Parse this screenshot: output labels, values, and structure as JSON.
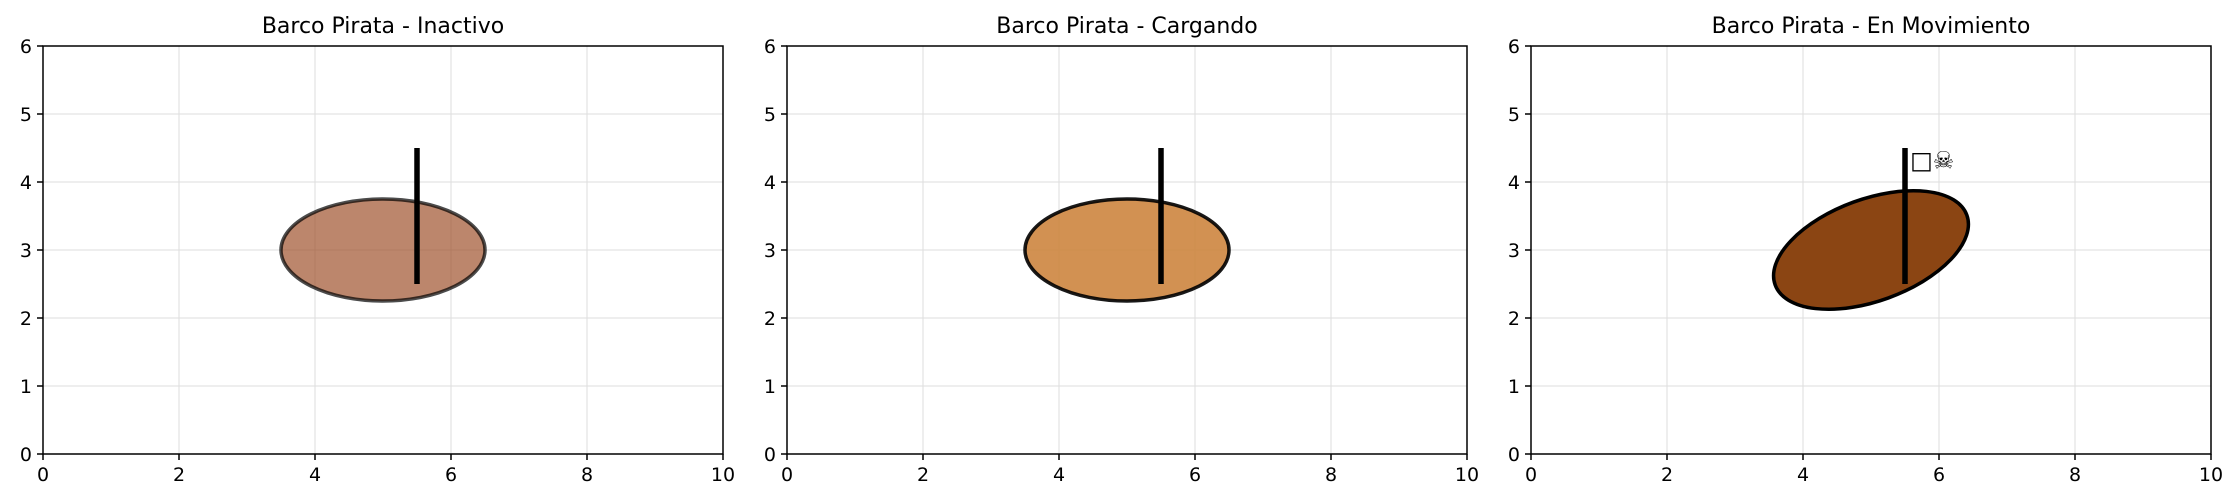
{
  "chart_data": [
    {
      "type": "other",
      "title": "Barco Pirata - Inactivo",
      "xlabel": "",
      "ylabel": "",
      "xlim": [
        0,
        10
      ],
      "ylim": [
        0,
        6
      ],
      "xticks": [
        0,
        2,
        4,
        6,
        8,
        10
      ],
      "yticks": [
        0,
        1,
        2,
        3,
        4,
        5,
        6
      ],
      "grid": true,
      "hull": {
        "center": [
          5,
          3
        ],
        "width": 3,
        "height": 1.5,
        "angle_deg": 0,
        "color": "#A0522D",
        "alpha": 0.7,
        "edge_color": "#000000"
      },
      "mast": {
        "x": 5.5,
        "y_from": 2.5,
        "y_to": 4.5,
        "color": "#000000"
      },
      "annotations": []
    },
    {
      "type": "other",
      "title": "Barco Pirata - Cargando",
      "xlabel": "",
      "ylabel": "",
      "xlim": [
        0,
        10
      ],
      "ylim": [
        0,
        6
      ],
      "xticks": [
        0,
        2,
        4,
        6,
        8,
        10
      ],
      "yticks": [
        0,
        1,
        2,
        3,
        4,
        5,
        6
      ],
      "grid": true,
      "hull": {
        "center": [
          5,
          3
        ],
        "width": 3,
        "height": 1.5,
        "angle_deg": 0,
        "color": "#CD853F",
        "alpha": 0.9,
        "edge_color": "#000000"
      },
      "mast": {
        "x": 5.5,
        "y_from": 2.5,
        "y_to": 4.5,
        "color": "#000000"
      },
      "annotations": []
    },
    {
      "type": "other",
      "title": "Barco Pirata - En Movimiento",
      "xlabel": "",
      "ylabel": "",
      "xlim": [
        0,
        10
      ],
      "ylim": [
        0,
        6
      ],
      "xticks": [
        0,
        2,
        4,
        6,
        8,
        10
      ],
      "yticks": [
        0,
        1,
        2,
        3,
        4,
        5,
        6
      ],
      "grid": true,
      "hull": {
        "center": [
          5,
          3
        ],
        "width": 3,
        "height": 1.5,
        "angle_deg": 20,
        "color": "#8B4513",
        "alpha": 1.0,
        "edge_color": "#000000"
      },
      "mast": {
        "x": 5.5,
        "y_from": 2.5,
        "y_to": 4.5,
        "color": "#000000"
      },
      "annotations": [
        {
          "text": "□☠",
          "x": 5.9,
          "y": 4.3
        }
      ]
    }
  ]
}
